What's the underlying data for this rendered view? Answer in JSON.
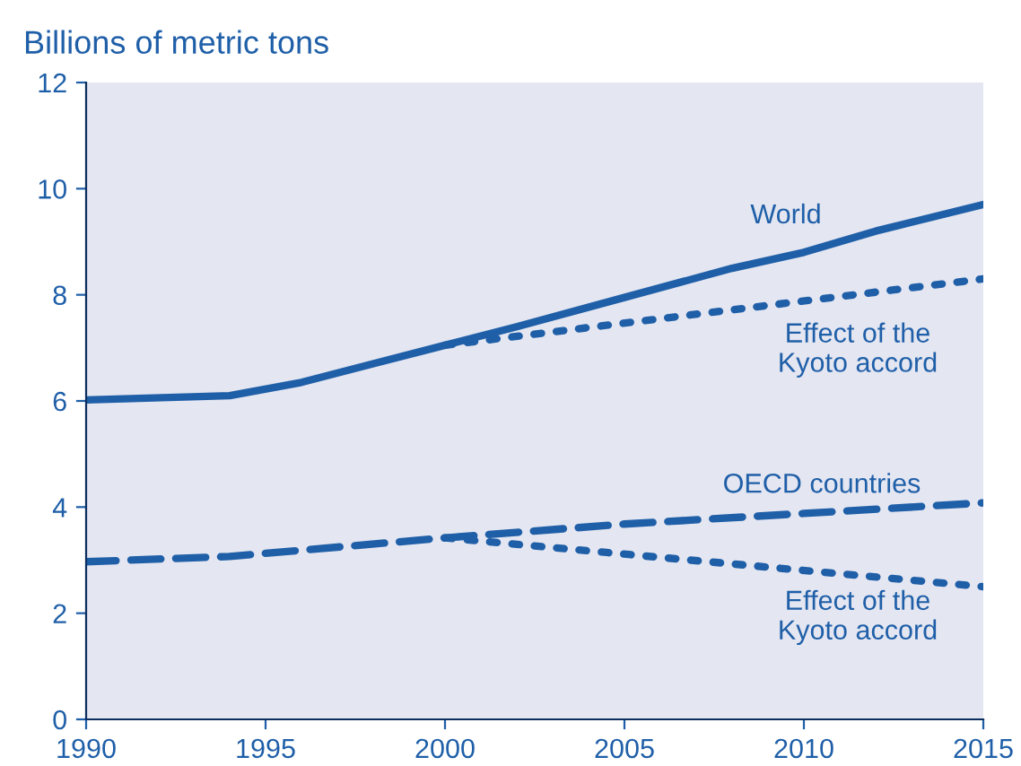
{
  "chart_data": {
    "type": "line",
    "ylabel": "Billions of metric tons",
    "xlim": [
      1990,
      2015
    ],
    "ylim": [
      0,
      12
    ],
    "xticks": [
      1990,
      1995,
      2000,
      2005,
      2010,
      2015
    ],
    "yticks": [
      0,
      2,
      4,
      6,
      8,
      10,
      12
    ],
    "grid": false,
    "legend": false,
    "marker": "none",
    "series": [
      {
        "color": "#1f5fa8",
        "line_style": "solid",
        "x": [
          1990,
          1994,
          1996,
          1998,
          2000,
          2002,
          2005,
          2008,
          2010,
          2012,
          2015
        ],
        "values": [
          6.02,
          6.1,
          6.35,
          6.7,
          7.05,
          7.4,
          7.95,
          8.5,
          8.8,
          9.2,
          9.7
        ]
      },
      {
        "color": "#1f5fa8",
        "line_style": "dotted",
        "x": [
          2000,
          2015
        ],
        "values": [
          7.05,
          8.3
        ]
      },
      {
        "color": "#1f5fa8",
        "line_style": "dashed",
        "x": [
          1990,
          1994,
          2000,
          2005,
          2010,
          2015
        ],
        "values": [
          2.97,
          3.07,
          3.42,
          3.68,
          3.88,
          4.08
        ]
      },
      {
        "color": "#1f5fa8",
        "line_style": "dotted",
        "x": [
          2000,
          2015
        ],
        "values": [
          3.42,
          2.5
        ]
      }
    ],
    "annotations": [
      "World",
      "Effect of the\nKyoto accord",
      "OECD countries",
      "Effect of the\nKyoto accord"
    ]
  }
}
